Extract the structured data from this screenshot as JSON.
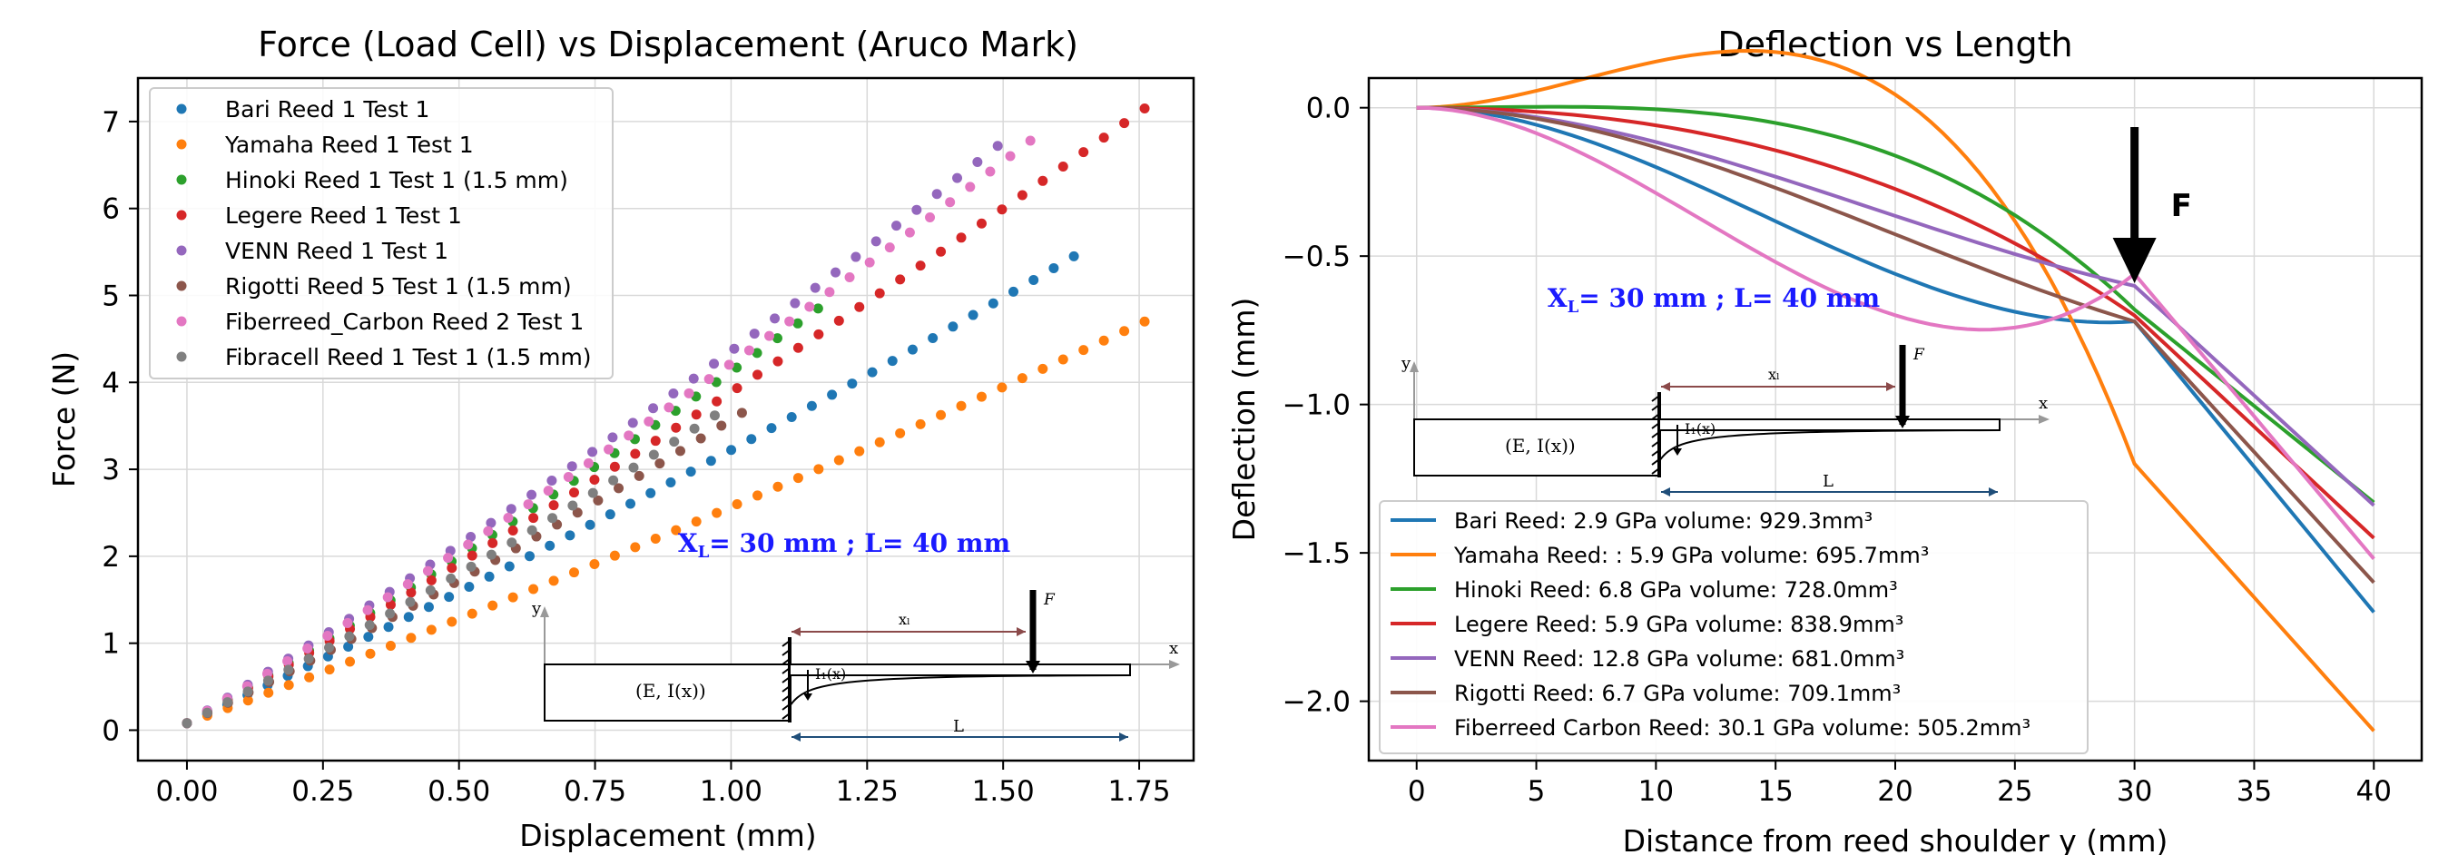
{
  "chart_data": [
    {
      "type": "scatter",
      "title": "Force (Load Cell) vs Displacement (Aruco Mark)",
      "xlabel": "Displacement (mm)",
      "ylabel": "Force (N)",
      "xlim": [
        -0.09,
        1.85
      ],
      "ylim": [
        -0.35,
        7.5
      ],
      "xticks": [
        "0.00",
        "0.25",
        "0.50",
        "0.75",
        "1.00",
        "1.25",
        "1.50",
        "1.75"
      ],
      "yticks": [
        "0",
        "1",
        "2",
        "3",
        "4",
        "5",
        "6",
        "7"
      ],
      "grid": true,
      "legend_position": "upper-left",
      "series": [
        {
          "name": "Bari Reed 1 Test 1",
          "color": "#1f77b4",
          "x_end": 1.63,
          "y_end": 5.45,
          "n": 45
        },
        {
          "name": "Yamaha Reed 1 Test 1",
          "color": "#ff7f0e",
          "x_end": 1.76,
          "y_end": 4.7,
          "n": 48
        },
        {
          "name": "Hinoki Reed 1 Test 1 (1.5 mm)",
          "color": "#2ca02c",
          "x_end": 1.16,
          "y_end": 4.85,
          "n": 32
        },
        {
          "name": "Legere Reed 1 Test 1",
          "color": "#d62728",
          "x_end": 1.76,
          "y_end": 7.15,
          "n": 48
        },
        {
          "name": "VENN Reed 1 Test 1",
          "color": "#9467bd",
          "x_end": 1.49,
          "y_end": 6.72,
          "n": 41
        },
        {
          "name": "Rigotti Reed 5 Test 1 (1.5 mm)",
          "color": "#8c564b",
          "x_end": 1.02,
          "y_end": 3.65,
          "n": 28
        },
        {
          "name": "Fiberreed_Carbon Reed 2 Test 1",
          "color": "#e377c2",
          "x_end": 1.55,
          "y_end": 6.78,
          "n": 43
        },
        {
          "name": "Fibracell Reed 1 Test 1 (1.5 mm)",
          "color": "#7f7f7f",
          "x_end": 0.97,
          "y_end": 3.62,
          "n": 27
        }
      ]
    },
    {
      "type": "line",
      "title": "Deflection vs Length",
      "xlabel": "Distance from reed shoulder y (mm)",
      "ylabel": "Deflection (mm)",
      "xlim": [
        -2,
        42
      ],
      "ylim": [
        -2.2,
        0.1
      ],
      "xticks": [
        "0",
        "5",
        "10",
        "15",
        "20",
        "25",
        "30",
        "35",
        "40"
      ],
      "yticks": [
        "0.0",
        "−0.5",
        "−1.0",
        "−1.5",
        "−2.0"
      ],
      "grid": true,
      "legend_position": "lower-left",
      "annotation": {
        "label": "F",
        "x": 30
      },
      "series": [
        {
          "name": "Bari Reed: 2.9 GPa volume: 929.3mm³",
          "color": "#1f77b4",
          "end": -1.7,
          "at30": -0.72
        },
        {
          "name": "Yamaha Reed: : 5.9 GPa volume: 695.7mm³",
          "color": "#ff7f0e",
          "end": -2.1,
          "at30": -1.2
        },
        {
          "name": "Hinoki Reed: 6.8 GPa volume: 728.0mm³",
          "color": "#2ca02c",
          "end": -1.33,
          "at30": -0.68
        },
        {
          "name": "Legere Reed: 5.9 GPa volume: 838.9mm³",
          "color": "#d62728",
          "end": -1.45,
          "at30": -0.7
        },
        {
          "name": "VENN Reed: 12.8 GPa volume: 681.0mm³",
          "color": "#9467bd",
          "end": -1.34,
          "at30": -0.6
        },
        {
          "name": "Rigotti Reed: 6.7 GPa volume: 709.1mm³",
          "color": "#8c564b",
          "end": -1.6,
          "at30": -0.72
        },
        {
          "name": "Fiberreed Carbon Reed: 30.1 GPa volume: 505.2mm³",
          "color": "#e377c2",
          "end": -1.52,
          "at30": -0.56
        }
      ]
    }
  ],
  "diagram": {
    "heading": "Xₗ= 30 mm ;  L= 40 mm",
    "heading_x": "X",
    "heading_sub": "L",
    "heading_rest": "= 30 mm ;  L= 40 mm",
    "section_label": "(E, I(x))",
    "xl_label": "xₗ",
    "force_label": "F",
    "deflection_label": "I₁(x)",
    "length_label": "L",
    "axis_x": "x",
    "axis_y": "y"
  }
}
